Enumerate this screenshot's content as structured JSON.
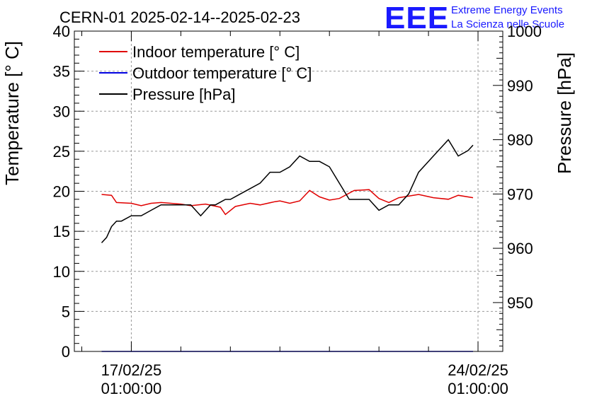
{
  "chart_data": {
    "type": "line",
    "title": "CERN-01 2025-02-14--2025-02-23",
    "logo": {
      "mark": "EEE",
      "line1": "Extreme Energy Events",
      "line2": "La Scienza nelle Scuole",
      "color": "#1a1aff"
    },
    "x_ticks": [
      {
        "x": 2.0,
        "date": "17/02/25",
        "time": "01:00:00"
      },
      {
        "x": 9.0,
        "date": "24/02/25",
        "time": "01:00:00"
      }
    ],
    "xlim": [
      0.85,
      9.5
    ],
    "y_left": {
      "label": "Temperature [° C]",
      "ylim": [
        0,
        40
      ],
      "ticks": [
        "0",
        "5",
        "10",
        "15",
        "20",
        "25",
        "30",
        "35",
        "40"
      ]
    },
    "y_right": {
      "label": "Pressure [hPa]",
      "ylim": [
        941,
        1000
      ],
      "ticks": [
        "950",
        "960",
        "970",
        "980",
        "990",
        "1000"
      ]
    },
    "grid": true,
    "legend_placement": "top-left",
    "series": [
      {
        "name": "Indoor temperature [° C]",
        "color": "#e00000",
        "axis": "left",
        "x": [
          1.4,
          1.6,
          1.7,
          2.0,
          2.2,
          2.4,
          2.6,
          2.8,
          3.0,
          3.2,
          3.5,
          3.8,
          3.9,
          4.1,
          4.4,
          4.6,
          4.9,
          5.0,
          5.2,
          5.4,
          5.6,
          5.8,
          6.0,
          6.2,
          6.5,
          6.8,
          7.0,
          7.2,
          7.4,
          7.8,
          8.1,
          8.4,
          8.6,
          8.9
        ],
        "values": [
          19.6,
          19.5,
          18.6,
          18.5,
          18.2,
          18.5,
          18.6,
          18.5,
          18.4,
          18.2,
          18.4,
          18.0,
          17.1,
          18.1,
          18.5,
          18.3,
          18.7,
          18.8,
          18.5,
          18.8,
          20.1,
          19.3,
          18.9,
          19.1,
          20.1,
          20.2,
          19.1,
          18.6,
          19.2,
          19.6,
          19.2,
          19.0,
          19.5,
          19.2
        ]
      },
      {
        "name": "Outdoor temperature [° C]",
        "color": "#0000e0",
        "axis": "left",
        "x": [
          1.4,
          8.9
        ],
        "values": [
          0.0,
          0.0
        ]
      },
      {
        "name": "Pressure [hPa]",
        "color": "#000000",
        "axis": "right",
        "x": [
          1.4,
          1.5,
          1.6,
          1.7,
          1.8,
          2.0,
          2.2,
          2.4,
          2.6,
          2.8,
          3.0,
          3.2,
          3.4,
          3.6,
          3.7,
          3.9,
          4.0,
          4.2,
          4.4,
          4.6,
          4.8,
          5.0,
          5.2,
          5.4,
          5.6,
          5.8,
          6.0,
          6.2,
          6.4,
          6.6,
          6.8,
          7.0,
          7.2,
          7.4,
          7.6,
          7.8,
          8.0,
          8.2,
          8.4,
          8.6,
          8.8,
          8.9
        ],
        "values": [
          961,
          962,
          964,
          965,
          965,
          966,
          966,
          967,
          968,
          968,
          968,
          968,
          966,
          968,
          968,
          969,
          969,
          970,
          971,
          972,
          974,
          974,
          975,
          977,
          976,
          976,
          975,
          972,
          969,
          969,
          969,
          967,
          968,
          968,
          970,
          974,
          976,
          978,
          980,
          977,
          978,
          979
        ]
      }
    ]
  }
}
